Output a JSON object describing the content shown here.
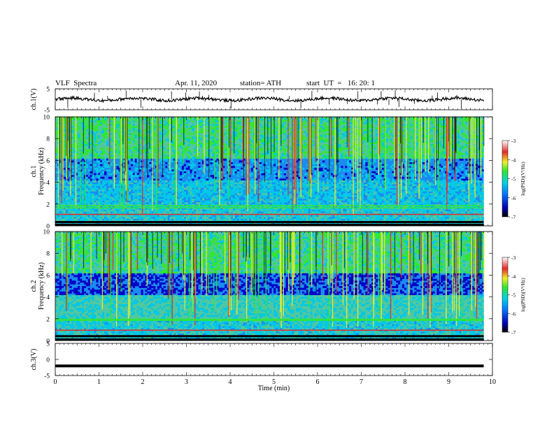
{
  "header": {
    "title": "VLF  Spectra",
    "date": "Apr. 11, 2020",
    "station": "station= ATH",
    "start_ut": "start  UT  =   16: 20: 1"
  },
  "chart_data": [
    {
      "type": "line",
      "panel": "ch1-waveform",
      "ylabel": "ch.1(V)",
      "ylim": [
        -5,
        5
      ],
      "yticks": [
        "5",
        "-5"
      ],
      "x_range_min": [
        0,
        10
      ],
      "trace_level_approx": 0,
      "trace_extent_min": 9.8,
      "noisy": true
    },
    {
      "type": "heatmap",
      "panel": "ch1-spectrogram",
      "ylabel_lines": [
        "ch.1",
        "Frequency  (kHz)"
      ],
      "ylim": [
        0,
        10
      ],
      "yticks": [
        "0",
        "2",
        "4",
        "6",
        "8",
        "10"
      ],
      "colorbar_label": "log(PSD)(V²/Hz)",
      "colorbar_ticks": [
        "-3",
        "-4",
        "-5",
        "-6",
        "-7"
      ],
      "colorbar_range": [
        -7,
        -3
      ],
      "data_extent_min": 9.8
    },
    {
      "type": "heatmap",
      "panel": "ch2-spectrogram",
      "ylabel_lines": [
        "ch.2",
        "Frequency  (kHz)"
      ],
      "ylim": [
        0,
        10
      ],
      "yticks": [
        "0",
        "2",
        "4",
        "6",
        "8",
        "10"
      ],
      "colorbar_label": "log(PSD)(V²/Hz)",
      "colorbar_ticks": [
        "-3",
        "-4",
        "-5",
        "-6",
        "-7"
      ],
      "colorbar_range": [
        -7,
        -3
      ],
      "data_extent_min": 9.8
    },
    {
      "type": "line",
      "panel": "ch3-waveform",
      "ylabel": "ch.3(V)",
      "ylim": [
        -5,
        5
      ],
      "yticks": [
        "5",
        "0",
        "-5"
      ],
      "trace_level_approx": -2,
      "trace_extent_min": 9.8,
      "noisy": false
    }
  ],
  "xaxis": {
    "label": "Time  (min)",
    "ticks": [
      "0",
      "1",
      "2",
      "3",
      "4",
      "5",
      "6",
      "7",
      "8",
      "9",
      "10"
    ],
    "xlim": [
      0,
      10
    ]
  },
  "colors": {
    "deep_blue": "#0000c8",
    "blue": "#0064ff",
    "cyan": "#00c8e6",
    "teal": "#50c8a0",
    "green": "#32e632",
    "yellow": "#f0f028",
    "red": "#e62828",
    "dark": "#000000"
  }
}
